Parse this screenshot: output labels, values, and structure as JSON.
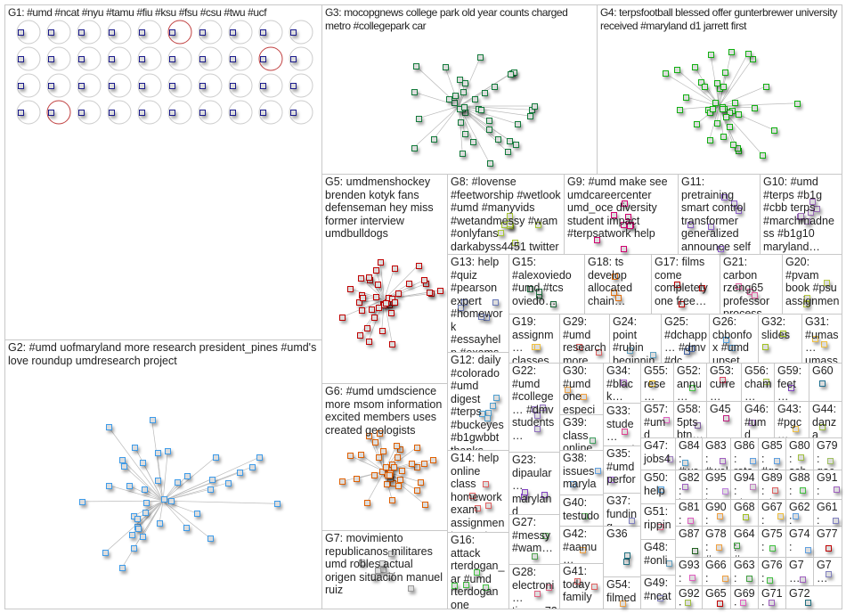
{
  "groups": [
    {
      "id": "G1",
      "label": "G1: #umd #ncat #nyu #tamu #fiu #ksu #fsu #csu #twu #ucf",
      "color": "#1a1a8c"
    },
    {
      "id": "G2",
      "label": "G2: #umd uofmaryland more research president_pines #umd's love roundup umdresearch project",
      "color": "#3d9be9"
    },
    {
      "id": "G3",
      "label": "G3: mocopgnews college park old year counts charged metro #collegepark car",
      "color": "#127a3a"
    },
    {
      "id": "G4",
      "label": "G4: terpsfootball blessed offer gunterbrewer university received #maryland d1 jarrett first",
      "color": "#10b010"
    },
    {
      "id": "G5",
      "label": "G5: umdmenshockey brenden kotyk fans defenseman hey miss former interview umdbulldogs",
      "color": "#c00000"
    },
    {
      "id": "G6",
      "label": "G6: #umd umdscience more msom information excited members uses created geologists",
      "color": "#e06000"
    },
    {
      "id": "G7",
      "label": "G7: movimiento republicanos militares umd robles actual origen situación manuel ruiz",
      "color": "#999999"
    },
    {
      "id": "G8",
      "label": "G8: #lovense #feetworship #wetlook #umd #manyvids #wetandmessy #wam #onlyfans darkabyss4451 twitter",
      "color": "#a8c832"
    },
    {
      "id": "G9",
      "label": "G9: #umd make see umdcareercenter umd_oce diversity student impact #terpsatwork help",
      "color": "#d0006f"
    },
    {
      "id": "G11",
      "label": "G11: pretraining smart control transformer generalized announce self multi task thrilled",
      "color": "#8a5cc8"
    },
    {
      "id": "G10",
      "label": "G10: #umd #terps #b1g #cbb terps #marchmadness #b1g10 maryland…",
      "color": "#9a6ab8"
    },
    {
      "id": "G13",
      "label": "G13: help #quiz #pearson expert #homework #essayhelp #exams #assignme…",
      "color": "#6a7ab8"
    },
    {
      "id": "G15",
      "label": "G15: #alexoviedo #umd #tcs oviedo…",
      "color": "#1a6a3a"
    },
    {
      "id": "G18",
      "label": "G18: ts develop allocated chain…",
      "color": "#e07010"
    },
    {
      "id": "G17",
      "label": "G17: films come completely one free…",
      "color": "#c00000"
    },
    {
      "id": "G21",
      "label": "G21: carbon rzeng65 professor process…",
      "color": "#e060a0"
    },
    {
      "id": "G20",
      "label": "G20: #pvam book #psu assignmen… research…",
      "color": "#b8c840"
    },
    {
      "id": "G19",
      "label": "G19: assignm… classes essays #psu #pvam…",
      "color": "#f0c040"
    },
    {
      "id": "G29",
      "label": "G29: #umd research more…",
      "color": "#e06060"
    },
    {
      "id": "G24",
      "label": "G24: point #rubin beginning west…",
      "color": "#60a0c0"
    },
    {
      "id": "G25",
      "label": "G25: #dchapp… #dmv #dc #food…",
      "color": "#4060a0"
    },
    {
      "id": "G26",
      "label": "G26: cbbonfox #umd upset…",
      "color": "#50a0e0"
    },
    {
      "id": "G32",
      "label": "G32: slides",
      "color": "#a0c020"
    },
    {
      "id": "G31",
      "label": "G31: #umas… umass… #umd…",
      "color": "#f0c040"
    },
    {
      "id": "G12",
      "label": "G12: daily #colorado #umd digest #terps #buckeyes #b1gwbbt thanks #b1g #iubb",
      "color": "#50a0d0"
    },
    {
      "id": "G22",
      "label": "G22: #umd #college… #dmv students…",
      "color": "#9070c0"
    },
    {
      "id": "G30",
      "label": "G30: #umd one especi…",
      "color": "#f0a040"
    },
    {
      "id": "G34",
      "label": "G34: #black… #canv…",
      "color": "#a060c0"
    },
    {
      "id": "G55",
      "label": "G55: rese…",
      "color": "#f0c020"
    },
    {
      "id": "G52",
      "label": "G52: annu…",
      "color": "#40c040"
    },
    {
      "id": "G53",
      "label": "G53: curre…",
      "color": "#e04060"
    },
    {
      "id": "G56",
      "label": "G56: cham…",
      "color": "#a0c040"
    },
    {
      "id": "G59",
      "label": "G59: feet…",
      "color": "#8040c0"
    },
    {
      "id": "G60",
      "label": "G60",
      "color": "#207090"
    },
    {
      "id": "G33",
      "label": "G33: stude… #umd…",
      "color": "#e04090"
    },
    {
      "id": "G57",
      "label": "G57: #umd #univ…",
      "color": "#e060c0"
    },
    {
      "id": "G58",
      "label": "G58: 5pts btn…",
      "color": "#8060a0"
    },
    {
      "id": "G45",
      "label": "G45",
      "color": "#c02080"
    },
    {
      "id": "G46",
      "label": "G46: #umd #phd…",
      "color": "#a070c0"
    },
    {
      "id": "G43",
      "label": "G43: #pgc… pg…",
      "color": "#f0c040"
    },
    {
      "id": "G44",
      "label": "G44: danza mañ…",
      "color": "#a0c040"
    },
    {
      "id": "G39",
      "label": "G39: class online…",
      "color": "#40a060"
    },
    {
      "id": "G14",
      "label": "G14: help online class homework exam assignment expert #usa…",
      "color": "#e06060"
    },
    {
      "id": "G23",
      "label": "G23: dipaular… maryland whole…",
      "color": "#8040c0"
    },
    {
      "id": "G38",
      "label": "G38: issues marylan…",
      "color": "#60a0e0"
    },
    {
      "id": "G35",
      "label": "G35: #umd perfor…",
      "color": "#a060e0"
    },
    {
      "id": "G47",
      "label": "G47: jobs4…",
      "color": "#a080c0"
    },
    {
      "id": "G84",
      "label": "G84: #we…",
      "color": "#50a0d0"
    },
    {
      "id": "G83",
      "label": "G83: #wel…",
      "color": "#a060c0"
    },
    {
      "id": "G86",
      "label": "G86: rota…",
      "color": "#60a0e0"
    },
    {
      "id": "G85",
      "label": "G85: #gs…",
      "color": "#60a0e0"
    },
    {
      "id": "G80",
      "label": "G80: sch…",
      "color": "#a0c040"
    },
    {
      "id": "G79",
      "label": "G79: qac…",
      "color": "#a0c060"
    },
    {
      "id": "G50",
      "label": "G50: help…",
      "color": "#50a0e0"
    },
    {
      "id": "G82",
      "label": "G82: lear…",
      "color": "#a060c0"
    },
    {
      "id": "G95",
      "label": "G95: loved",
      "color": "#c080e0"
    },
    {
      "id": "G94",
      "label": "G94: phot…",
      "color": "#c080c0"
    },
    {
      "id": "G89",
      "label": "G89: win…",
      "color": "#e06060"
    },
    {
      "id": "G88",
      "label": "G88: #tsu…",
      "color": "#40c040"
    },
    {
      "id": "G91",
      "label": "G91: #pe…",
      "color": "#a060c0"
    },
    {
      "id": "G27",
      "label": "G27: #messy #wam…",
      "color": "#50a050"
    },
    {
      "id": "G40",
      "label": "G40: testudo… great…",
      "color": "#60c060"
    },
    {
      "id": "G37",
      "label": "G37: funding good…",
      "color": "#8080c0"
    },
    {
      "id": "G51",
      "label": "G51: rippin…",
      "color": "#e06080"
    },
    {
      "id": "G81",
      "label": "G81: teso…",
      "color": "#e060c0"
    },
    {
      "id": "G90",
      "label": "G90: #pe…",
      "color": "#f0a040"
    },
    {
      "id": "G68",
      "label": "G68",
      "color": "#a0c020"
    },
    {
      "id": "G67",
      "label": "G67: hist…",
      "color": "#f0c040"
    },
    {
      "id": "G62",
      "label": "G62: cha…",
      "color": "#60a0e0"
    },
    {
      "id": "G61",
      "label": "G61: #ca…",
      "color": "#8080c0"
    },
    {
      "id": "G16",
      "label": "G16: attack rterdogan_ar #umd rterdogan one oic_oci…",
      "color": "#40c040"
    },
    {
      "id": "G42",
      "label": "G42: #aamu… #jsu23…",
      "color": "#f0a040"
    },
    {
      "id": "G36",
      "label": "G36",
      "color": "#207080"
    },
    {
      "id": "G48",
      "label": "G48: #onli…",
      "color": "#60a0c0"
    },
    {
      "id": "G87",
      "label": "G87",
      "color": "#206020"
    },
    {
      "id": "G78",
      "label": "G78: #ma…",
      "color": "#f0a040"
    },
    {
      "id": "G64",
      "label": "G64: #nc…",
      "color": "#40a040"
    },
    {
      "id": "G75",
      "label": "G75: exa…",
      "color": "#40c040"
    },
    {
      "id": "G74",
      "label": "G74: gue…",
      "color": "#60a0e0"
    },
    {
      "id": "G77",
      "label": "G77",
      "color": "#c00000"
    },
    {
      "id": "G28",
      "label": "G28: electroni… timson72 n64mem…",
      "color": "#e06080"
    },
    {
      "id": "G41",
      "label": "G41: today family…",
      "color": "#e06060"
    },
    {
      "id": "G54",
      "label": "G54: filmed…",
      "color": "#f0a040"
    },
    {
      "id": "G49",
      "label": "G49: #ncat…",
      "color": "#8080c0"
    },
    {
      "id": "G93",
      "label": "G93: #gal…",
      "color": "#e060c0"
    },
    {
      "id": "G66",
      "label": "G66: assi…",
      "color": "#f0a040"
    },
    {
      "id": "G63",
      "label": "G63: #nc…",
      "color": "#40a040"
    },
    {
      "id": "G76",
      "label": "G76: help…",
      "color": "#40c040"
    },
    {
      "id": "G7a",
      "label": "G7… ml…",
      "color": "#a060c0"
    },
    {
      "id": "G7b",
      "label": "G7… #u…",
      "color": "#8080c0"
    },
    {
      "id": "G92",
      "label": "G92: #ny…",
      "color": "#a0c040"
    },
    {
      "id": "G65",
      "label": "G65",
      "color": "#c00000"
    },
    {
      "id": "G69",
      "label": "G69: prog…",
      "color": "#e060c0"
    },
    {
      "id": "G71",
      "label": "G71: #au…",
      "color": "#a060c0"
    },
    {
      "id": "G72",
      "label": "G72",
      "color": "#207080"
    }
  ]
}
